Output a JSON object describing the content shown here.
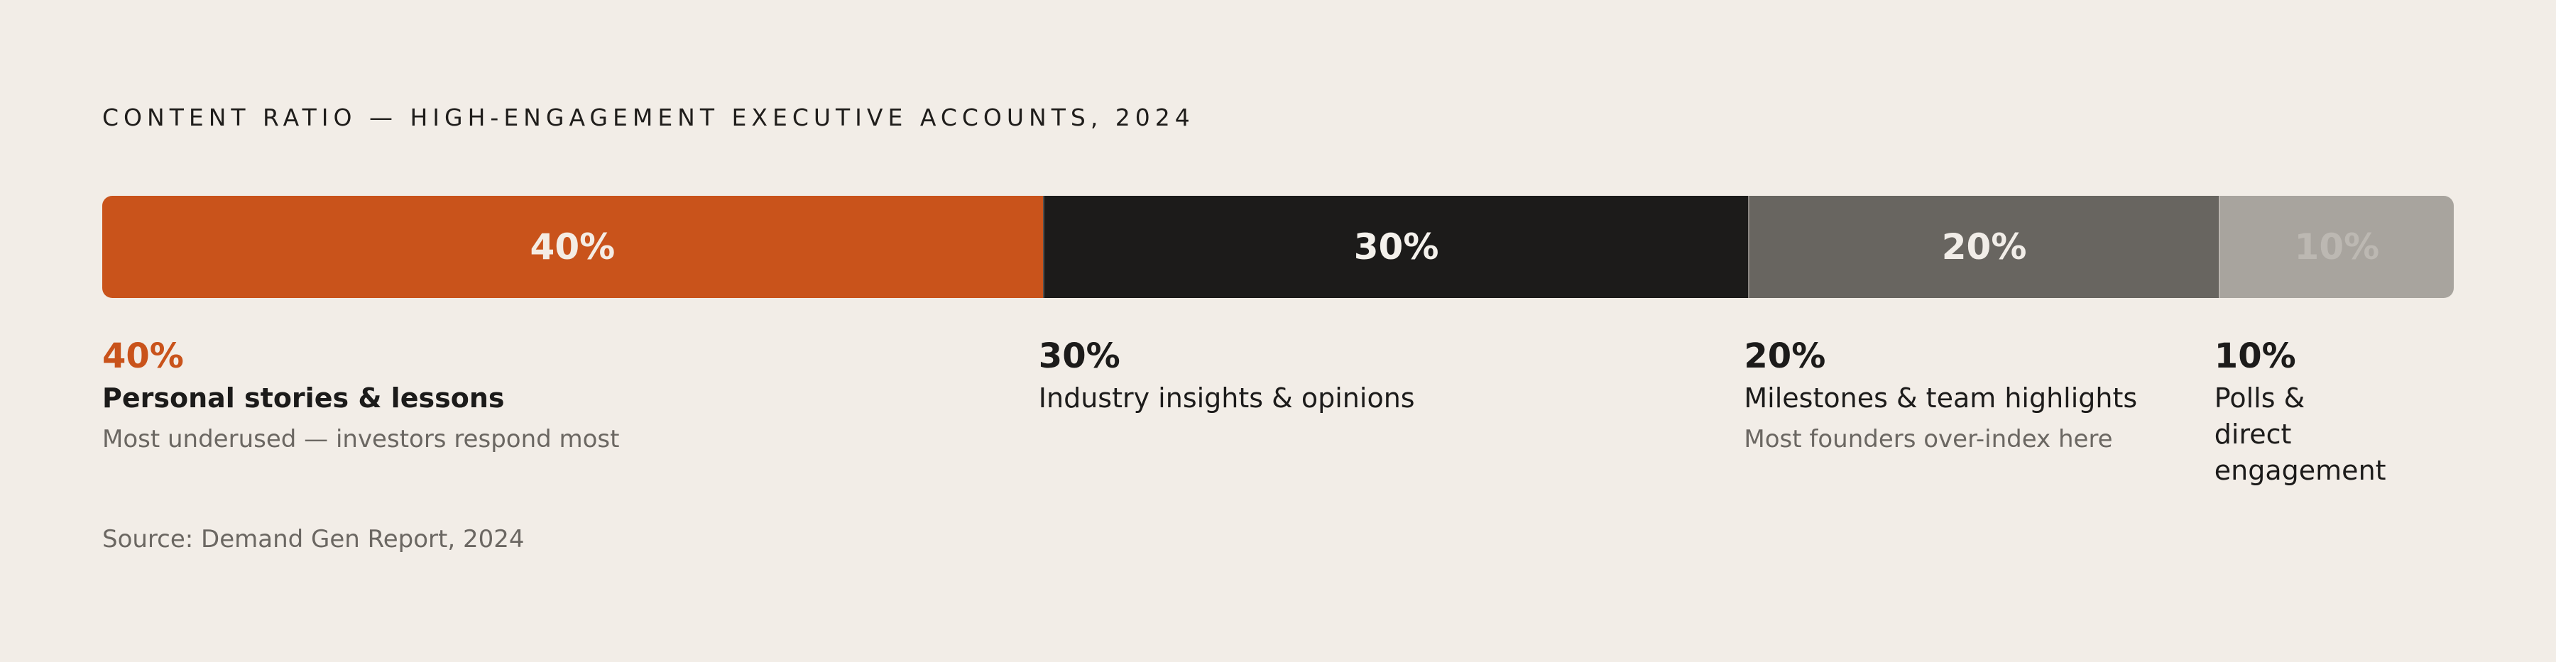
{
  "chart_data": {
    "type": "bar",
    "orientation": "horizontal-stacked",
    "title": "CONTENT RATIO — HIGH-ENGAGEMENT EXECUTIVE ACCOUNTS, 2024",
    "unit": "%",
    "total": 100,
    "segments": [
      {
        "label": "40%",
        "value": 40,
        "category": "Personal stories & lessons",
        "note": "Most underused — investors respond most",
        "color": "#c9531b",
        "text_color": "#f4ece4",
        "label_color": "#c9531b",
        "emphasized": true
      },
      {
        "label": "30%",
        "value": 30,
        "category": "Industry insights & opinions",
        "note": "",
        "color": "#1c1b1a",
        "text_color": "#f4f1ec",
        "label_color": "#1c1b1a",
        "emphasized": false
      },
      {
        "label": "20%",
        "value": 20,
        "category": "Milestones & team highlights",
        "note": "Most founders over-index here",
        "color": "#686560",
        "text_color": "#f1ede8",
        "label_color": "#1c1b1a",
        "emphasized": false
      },
      {
        "label": "10%",
        "value": 10,
        "category": "Polls & direct engagement",
        "note": "",
        "color": "#a8a49e",
        "text_color": "#bcb8b2",
        "label_color": "#1c1b1a",
        "emphasized": false
      }
    ],
    "source": "Source: Demand Gen Report, 2024"
  }
}
